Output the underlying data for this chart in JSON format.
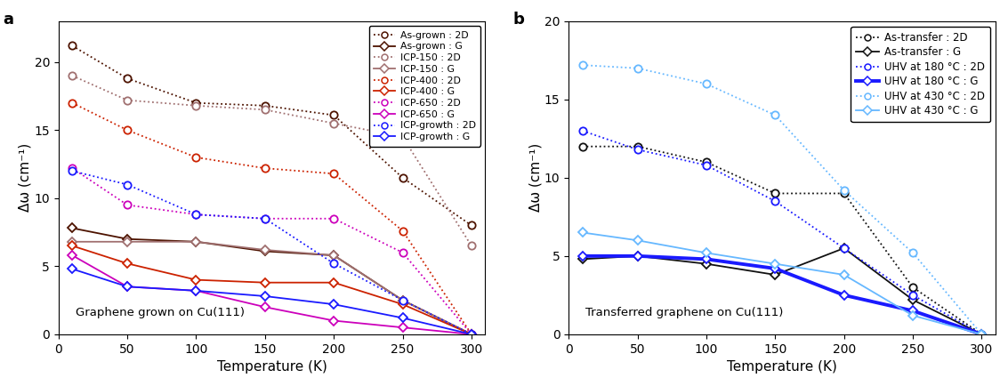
{
  "temp": [
    10,
    50,
    100,
    150,
    200,
    250,
    300
  ],
  "panel_a": {
    "as_grown_2D": [
      21.2,
      18.8,
      17.0,
      16.8,
      16.1,
      11.5,
      8.0
    ],
    "as_grown_G": [
      7.8,
      7.0,
      6.8,
      6.1,
      5.8,
      2.5,
      0.0
    ],
    "icp150_2D": [
      19.0,
      17.2,
      16.8,
      16.5,
      15.5,
      14.5,
      6.5
    ],
    "icp150_G": [
      6.8,
      6.8,
      6.8,
      6.2,
      5.8,
      2.5,
      0.0
    ],
    "icp400_2D": [
      17.0,
      15.0,
      13.0,
      12.2,
      11.8,
      7.6,
      0.0
    ],
    "icp400_G": [
      6.5,
      5.2,
      4.0,
      3.8,
      3.8,
      2.2,
      0.0
    ],
    "icp650_2D": [
      12.2,
      9.5,
      8.8,
      8.5,
      8.5,
      6.0,
      0.0
    ],
    "icp650_G": [
      5.8,
      3.5,
      3.2,
      2.0,
      1.0,
      0.5,
      0.0
    ],
    "icpgrowth_2D": [
      12.0,
      11.0,
      8.8,
      8.5,
      5.2,
      2.5,
      0.0
    ],
    "icpgrowth_G": [
      4.8,
      3.5,
      3.2,
      2.8,
      2.2,
      1.2,
      0.0
    ]
  },
  "panel_b": {
    "astransfer_2D": [
      12.0,
      12.0,
      11.0,
      9.0,
      9.0,
      3.0,
      0.0
    ],
    "astransfer_G": [
      4.8,
      5.0,
      4.5,
      3.8,
      5.5,
      2.2,
      0.0
    ],
    "uhv180_2D": [
      13.0,
      11.8,
      10.8,
      8.5,
      5.5,
      2.5,
      0.0
    ],
    "uhv180_G": [
      5.0,
      5.0,
      4.8,
      4.2,
      2.5,
      1.5,
      0.0
    ],
    "uhv430_2D": [
      17.2,
      17.0,
      16.0,
      14.0,
      9.2,
      5.2,
      0.0
    ],
    "uhv430_G": [
      6.5,
      6.0,
      5.2,
      4.5,
      3.8,
      1.2,
      0.0
    ]
  },
  "colors_a": {
    "as_grown": "#4d1300",
    "icp150": "#a07070",
    "icp400": "#cc2200",
    "icp650": "#cc00bb",
    "icpgrowth": "#1a1aff"
  },
  "colors_b": {
    "astransfer": "#111111",
    "uhv180": "#1a1aff",
    "uhv430": "#66b8ff"
  },
  "title_a": "Graphene grown on Cu(111)",
  "title_b": "Transferred graphene on Cu(111)",
  "ylabel": "Δω (cm⁻¹)",
  "xlabel": "Temperature (K)",
  "ylim_a": [
    0,
    23
  ],
  "ylim_b": [
    0,
    20
  ],
  "xlim": [
    0,
    310
  ],
  "xticks": [
    0,
    50,
    100,
    150,
    200,
    250,
    300
  ],
  "yticks_a": [
    0,
    5,
    10,
    15,
    20
  ],
  "yticks_b": [
    0,
    5,
    10,
    15,
    20
  ]
}
